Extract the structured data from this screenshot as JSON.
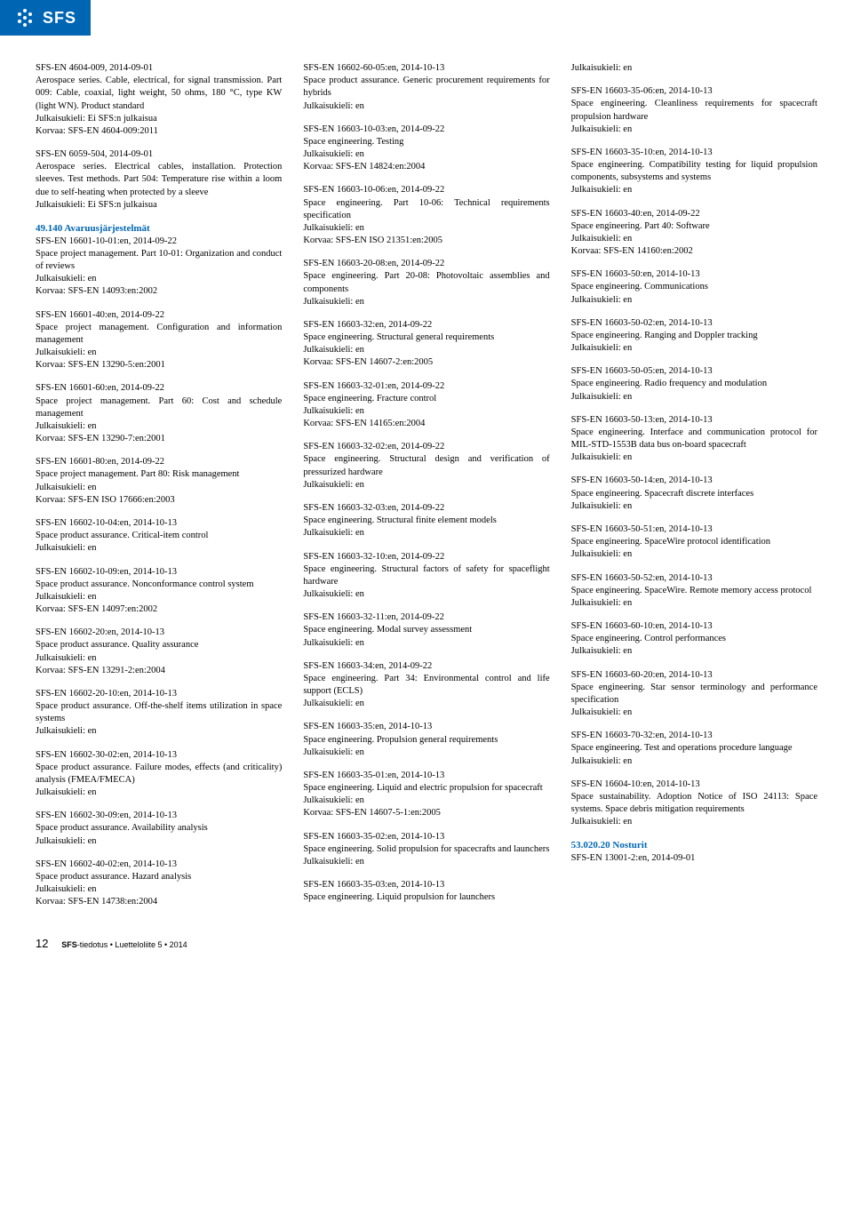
{
  "logo_text": "SFS",
  "columns": [
    {
      "entries": [
        {
          "lines": [
            "SFS-EN 4604-009, 2014-09-01",
            "Aerospace series. Cable, electrical, for signal transmission. Part 009: Cable, coaxial, light weight, 50 ohms, 180 °C, type KW (light WN). Product standard",
            "Julkaisukieli: Ei SFS:n julkaisua",
            "Korvaa: SFS-EN 4604-009:2011"
          ]
        },
        {
          "lines": [
            "SFS-EN 6059-504, 2014-09-01",
            "Aerospace series. Electrical cables, installation. Protection sleeves. Test methods. Part 504: Temperature rise within a loom due to self-heating when protected by a sleeve",
            "Julkaisukieli: Ei SFS:n julkaisua"
          ]
        },
        {
          "heading": "49.140 Avaruusjärjestelmät",
          "lines": [
            "SFS-EN 16601-10-01:en, 2014-09-22",
            "Space project management. Part 10-01: Organization and conduct of reviews",
            "Julkaisukieli: en",
            "Korvaa: SFS-EN 14093:en:2002"
          ]
        },
        {
          "lines": [
            "SFS-EN 16601-40:en, 2014-09-22",
            "Space project management. Configuration and information management",
            "Julkaisukieli: en",
            "Korvaa: SFS-EN 13290-5:en:2001"
          ]
        },
        {
          "lines": [
            "SFS-EN 16601-60:en, 2014-09-22",
            "Space project management. Part 60: Cost and schedule management",
            "Julkaisukieli: en",
            "Korvaa: SFS-EN 13290-7:en:2001"
          ]
        },
        {
          "lines": [
            "SFS-EN 16601-80:en, 2014-09-22",
            "Space project management. Part 80: Risk management",
            "Julkaisukieli: en",
            "Korvaa: SFS-EN ISO 17666:en:2003"
          ]
        },
        {
          "lines": [
            "SFS-EN 16602-10-04:en, 2014-10-13",
            "Space product assurance. Critical-item control",
            "Julkaisukieli: en"
          ]
        },
        {
          "lines": [
            "SFS-EN 16602-10-09:en, 2014-10-13",
            "Space product assurance. Nonconformance control system",
            "Julkaisukieli: en",
            "Korvaa: SFS-EN 14097:en:2002"
          ]
        },
        {
          "lines": [
            "SFS-EN 16602-20:en, 2014-10-13",
            "Space product assurance. Quality assurance",
            "Julkaisukieli: en",
            "Korvaa: SFS-EN 13291-2:en:2004"
          ]
        },
        {
          "lines": [
            "SFS-EN 16602-20-10:en, 2014-10-13",
            "Space product assurance. Off-the-shelf items utilization in space systems",
            "Julkaisukieli: en"
          ]
        },
        {
          "lines": [
            "SFS-EN 16602-30-02:en, 2014-10-13",
            "Space product assurance. Failure modes, effects (and criticality) analysis (FMEA/FMECA)",
            "Julkaisukieli: en"
          ]
        },
        {
          "lines": [
            "SFS-EN 16602-30-09:en, 2014-10-13",
            "Space product assurance. Availability analysis",
            "Julkaisukieli: en"
          ]
        },
        {
          "lines": [
            "SFS-EN 16602-40-02:en, 2014-10-13",
            "Space product assurance. Hazard analysis",
            "Julkaisukieli: en",
            "Korvaa: SFS-EN 14738:en:2004"
          ]
        }
      ]
    },
    {
      "entries": [
        {
          "lines": [
            "SFS-EN 16602-60-05:en, 2014-10-13",
            "Space product assurance. Generic procurement requirements for hybrids",
            "Julkaisukieli: en"
          ]
        },
        {
          "lines": [
            "SFS-EN 16603-10-03:en, 2014-09-22",
            "Space engineering. Testing",
            "Julkaisukieli: en",
            "Korvaa: SFS-EN 14824:en:2004"
          ]
        },
        {
          "lines": [
            "SFS-EN 16603-10-06:en, 2014-09-22",
            "Space engineering. Part 10-06: Technical requirements specification",
            "Julkaisukieli: en",
            "Korvaa: SFS-EN ISO 21351:en:2005"
          ]
        },
        {
          "lines": [
            "SFS-EN 16603-20-08:en, 2014-09-22",
            "Space engineering. Part 20-08: Photovoltaic assemblies and components",
            "Julkaisukieli: en"
          ]
        },
        {
          "lines": [
            "SFS-EN 16603-32:en, 2014-09-22",
            "Space engineering. Structural general requirements",
            "Julkaisukieli: en",
            "Korvaa: SFS-EN 14607-2:en:2005"
          ]
        },
        {
          "lines": [
            "SFS-EN 16603-32-01:en, 2014-09-22",
            "Space engineering. Fracture control",
            "Julkaisukieli: en",
            "Korvaa: SFS-EN 14165:en:2004"
          ]
        },
        {
          "lines": [
            "SFS-EN 16603-32-02:en, 2014-09-22",
            "Space engineering. Structural design and verification of pressurized hardware",
            "Julkaisukieli: en"
          ]
        },
        {
          "lines": [
            "SFS-EN 16603-32-03:en, 2014-09-22",
            "Space engineering. Structural finite element models",
            "Julkaisukieli: en"
          ]
        },
        {
          "lines": [
            "SFS-EN 16603-32-10:en, 2014-09-22",
            "Space engineering. Structural factors of safety for spaceflight hardware",
            "Julkaisukieli: en"
          ]
        },
        {
          "lines": [
            "SFS-EN 16603-32-11:en, 2014-09-22",
            "Space engineering. Modal survey assessment",
            "Julkaisukieli: en"
          ]
        },
        {
          "lines": [
            "SFS-EN 16603-34:en, 2014-09-22",
            "Space engineering. Part 34: Environmental control and life support (ECLS)",
            "Julkaisukieli: en"
          ]
        },
        {
          "lines": [
            "SFS-EN 16603-35:en, 2014-10-13",
            "Space engineering. Propulsion general requirements",
            "Julkaisukieli: en"
          ]
        },
        {
          "lines": [
            "SFS-EN 16603-35-01:en, 2014-10-13",
            "Space engineering. Liquid and electric propulsion for spacecraft",
            "Julkaisukieli: en",
            "Korvaa: SFS-EN 14607-5-1:en:2005"
          ]
        },
        {
          "lines": [
            "SFS-EN 16603-35-02:en, 2014-10-13",
            "Space engineering. Solid propulsion for spacecrafts and launchers",
            "Julkaisukieli: en"
          ]
        },
        {
          "lines": [
            "SFS-EN 16603-35-03:en, 2014-10-13",
            "Space engineering. Liquid propulsion for launchers"
          ]
        }
      ]
    },
    {
      "entries": [
        {
          "lines": [
            "Julkaisukieli: en"
          ]
        },
        {
          "lines": [
            "SFS-EN 16603-35-06:en, 2014-10-13",
            "Space engineering. Cleanliness requirements for spacecraft propulsion hardware",
            "Julkaisukieli: en"
          ]
        },
        {
          "lines": [
            "SFS-EN 16603-35-10:en, 2014-10-13",
            "Space engineering. Compatibility testing for liquid propulsion components, subsystems and systems",
            "Julkaisukieli: en"
          ]
        },
        {
          "lines": [
            "SFS-EN 16603-40:en, 2014-09-22",
            "Space engineering. Part 40: Software",
            "Julkaisukieli: en",
            "Korvaa: SFS-EN 14160:en:2002"
          ]
        },
        {
          "lines": [
            "SFS-EN 16603-50:en, 2014-10-13",
            "Space engineering. Communications",
            "Julkaisukieli: en"
          ]
        },
        {
          "lines": [
            "SFS-EN 16603-50-02:en, 2014-10-13",
            "Space engineering. Ranging and Doppler tracking",
            "Julkaisukieli: en"
          ]
        },
        {
          "lines": [
            "SFS-EN 16603-50-05:en, 2014-10-13",
            "Space engineering. Radio frequency and modulation",
            "Julkaisukieli: en"
          ]
        },
        {
          "lines": [
            "SFS-EN 16603-50-13:en, 2014-10-13",
            "Space engineering. Interface and communication protocol for MIL-STD-1553B data bus on-board spacecraft",
            "Julkaisukieli: en"
          ]
        },
        {
          "lines": [
            "SFS-EN 16603-50-14:en, 2014-10-13",
            "Space engineering. Spacecraft discrete interfaces",
            "Julkaisukieli: en"
          ]
        },
        {
          "lines": [
            "SFS-EN 16603-50-51:en, 2014-10-13",
            "Space engineering. SpaceWire protocol identification",
            "Julkaisukieli: en"
          ]
        },
        {
          "lines": [
            "SFS-EN 16603-50-52:en, 2014-10-13",
            "Space engineering. SpaceWire. Remote memory access protocol",
            "Julkaisukieli: en"
          ]
        },
        {
          "lines": [
            "SFS-EN 16603-60-10:en, 2014-10-13",
            "Space engineering. Control performances",
            "Julkaisukieli: en"
          ]
        },
        {
          "lines": [
            "SFS-EN 16603-60-20:en, 2014-10-13",
            "Space engineering. Star sensor terminology and performance specification",
            "Julkaisukieli: en"
          ]
        },
        {
          "lines": [
            "SFS-EN 16603-70-32:en, 2014-10-13",
            "Space engineering. Test and operations procedure language",
            "Julkaisukieli: en"
          ]
        },
        {
          "lines": [
            "SFS-EN 16604-10:en, 2014-10-13",
            "Space sustainability. Adoption Notice of ISO 24113: Space systems. Space debris mitigation requirements",
            "Julkaisukieli: en"
          ]
        },
        {
          "heading": "53.020.20 Nosturit",
          "lines": [
            "SFS-EN 13001-2:en, 2014-09-01"
          ]
        }
      ]
    }
  ],
  "footer": {
    "page": "12",
    "bold": "SFS",
    "rest": "-tiedotus • Luetteloliite 5 • 2014"
  }
}
